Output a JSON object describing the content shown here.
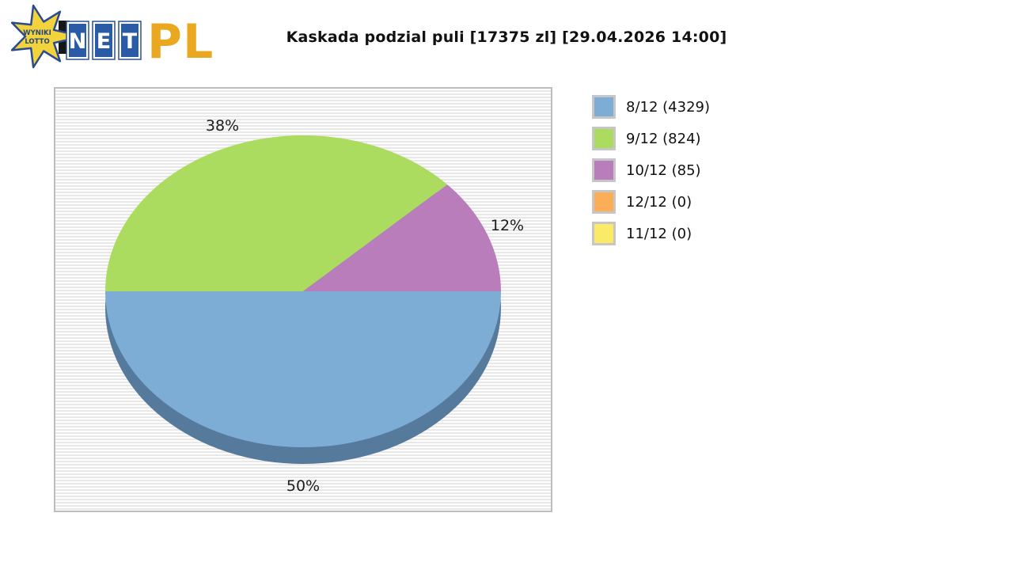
{
  "logo": {
    "star_line1": "WYNIKI",
    "star_line2": "LOTTO",
    "net_letter_1": "N",
    "net_letter_2": "E",
    "net_letter_3": "T",
    "pl": "PL",
    "colors": {
      "star_fill": "#f2d33c",
      "star_stroke": "#2b4c8c",
      "tile_blue": "#2a5ba7",
      "pl_gold": "#e9a81f"
    }
  },
  "header": {
    "title": "Kaskada podzial puli [17375 zl] [29.04.2026 14:00]"
  },
  "chart_data": {
    "type": "pie",
    "title": "Kaskada podzial puli [17375 zl] [29.04.2026 14:00]",
    "effect": "3d",
    "legend_position": "right",
    "start_angle_deg": 0,
    "direction": "clockwise",
    "shadow_color": "#567a9b",
    "background_stripes": [
      "#fdfdfd",
      "#e8e8e8"
    ],
    "slices": [
      {
        "label": "8/12",
        "value": 4329,
        "percent": 50,
        "color": "#7dadd4",
        "legend_label": "8/12 (4329)",
        "pct_label": "50%"
      },
      {
        "label": "9/12",
        "value": 824,
        "percent": 38,
        "color": "#abdc5f",
        "legend_label": "9/12 (824)",
        "pct_label": "38%"
      },
      {
        "label": "10/12",
        "value": 85,
        "percent": 12,
        "color": "#b97dbb",
        "legend_label": "10/12 (85)",
        "pct_label": "12%"
      },
      {
        "label": "12/12",
        "value": 0,
        "percent": 0,
        "color": "#fbae55",
        "legend_label": "12/12 (0)",
        "pct_label": ""
      },
      {
        "label": "11/12",
        "value": 0,
        "percent": 0,
        "color": "#fbe968",
        "legend_label": "11/12 (0)",
        "pct_label": ""
      }
    ]
  }
}
